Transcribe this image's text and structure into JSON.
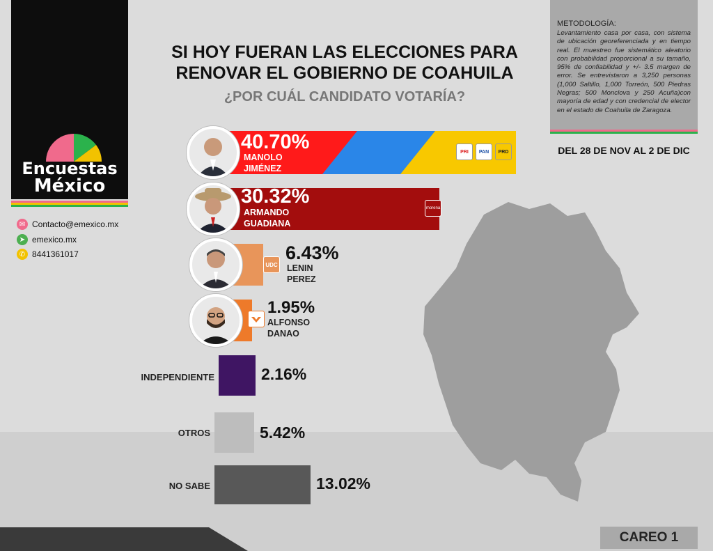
{
  "brand": {
    "line1": "Encuestas",
    "line2": "México"
  },
  "contacts": [
    {
      "icon": "envelope-icon",
      "text": "Contacto@emexico.mx",
      "color": "#f06a8c"
    },
    {
      "icon": "cursor-icon",
      "text": "emexico.mx",
      "color": "#4caf50"
    },
    {
      "icon": "phone-icon",
      "text": "8441361017",
      "color": "#f2c200"
    }
  ],
  "title": {
    "line1": "SI HOY FUERAN LAS ELECCIONES PARA",
    "line2": "RENOVAR EL GOBIERNO DE COAHUILA"
  },
  "subtitle": "¿POR CUÁL CANDIDATO VOTARÍA?",
  "methodology": {
    "heading": "METODOLOGÍA:",
    "text": "Levantamiento casa por casa, con sistema de ubicación georeferenciada y en tiempo real. El muestreo fue sistemático aleatorio con probabilidad proporcional a su tamaño, 95% de confiabilidad y +/- 3.5 margen de error. Se entrevistaron a 3,250 personas (1,000 Saltillo, 1,000 Torreón, 500 Piedras Negras; 500 Monclova y 250 Acuña)con mayoría de edad y con credencial de elector en el estado de Coahuila de Zaragoza."
  },
  "date_range": "DEL 28 DE NOV AL 2 DE DIC",
  "careo": "CAREO 1",
  "party_badges": {
    "pri": "PRI",
    "pan": "PAN",
    "prd": "PRD",
    "morena": "morena",
    "udc": "UDC"
  },
  "colors": {
    "brand_pink": "#f06a8c",
    "brand_green": "#2bb24c",
    "brand_yellow": "#f2c200",
    "jimenez_red": "#ff1a1a",
    "jimenez_blue": "#2a86e8",
    "jimenez_yellow": "#f8c800",
    "guadiana": "#a30d0d",
    "lenin": "#e8955a",
    "danao": "#ee7a2a",
    "independiente": "#3f1563",
    "otros": "#bdbdbd",
    "no_sabe": "#585858"
  },
  "chart_data": {
    "type": "bar",
    "orientation": "horizontal",
    "title": "SI HOY FUERAN LAS ELECCIONES PARA RENOVAR EL GOBIERNO DE COAHUILA",
    "subtitle": "¿POR CUÁL CANDIDATO VOTARÍA?",
    "unit": "%",
    "categories": [
      "MANOLO JIMÉNEZ",
      "ARMANDO GUADIANA",
      "LENIN PEREZ",
      "ALFONSO DANAO",
      "INDEPENDIENTE",
      "OTROS",
      "NO SABE"
    ],
    "values": [
      40.7,
      30.32,
      6.43,
      1.95,
      2.16,
      5.42,
      13.02
    ],
    "labels": [
      "40.70%",
      "30.32%",
      "6.43%",
      "1.95%",
      "2.16%",
      "5.42%",
      "13.02%"
    ],
    "candidates": [
      {
        "line1": "MANOLO",
        "line2": "JIMÉNEZ"
      },
      {
        "line1": "ARMANDO",
        "line2": "GUADIANA"
      },
      {
        "line1": "LENIN",
        "line2": "PEREZ"
      },
      {
        "line1": "ALFONSO",
        "line2": "DANAO"
      }
    ],
    "row_labels": [
      "INDEPENDIENTE",
      "OTROS",
      "NO SABE"
    ]
  }
}
